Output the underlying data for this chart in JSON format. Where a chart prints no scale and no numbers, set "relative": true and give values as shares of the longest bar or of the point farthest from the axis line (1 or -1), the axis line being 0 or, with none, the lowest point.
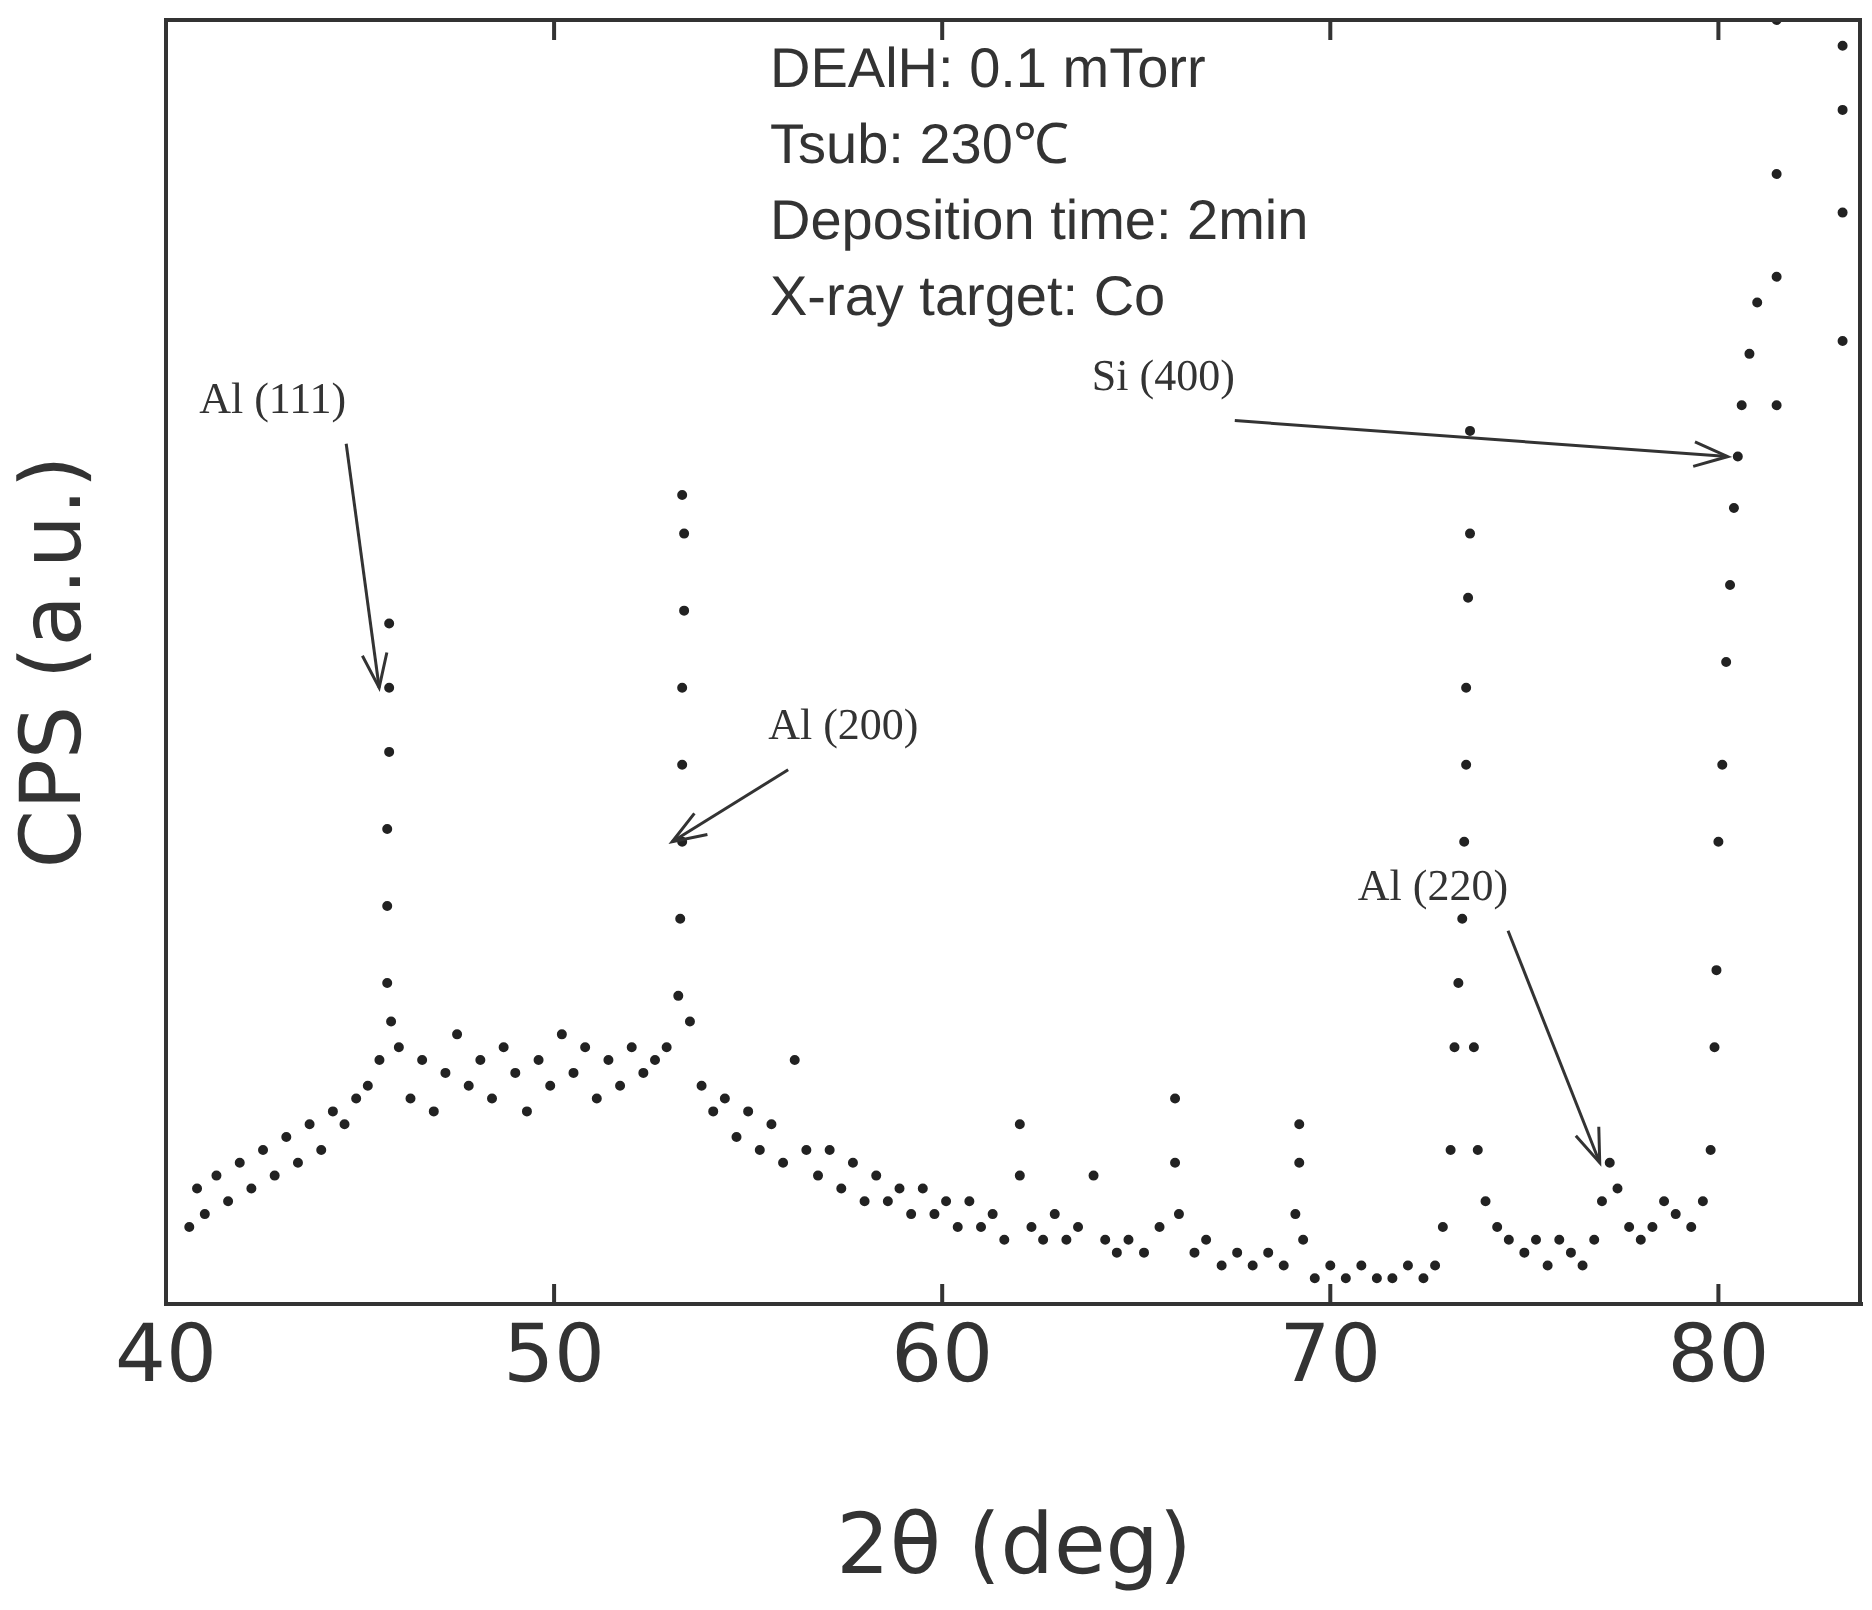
{
  "chart_data": {
    "type": "scatter",
    "relative": true,
    "xlabel": "2θ (deg)",
    "ylabel": "CPS (a.u.)",
    "xlim": [
      40,
      83.7
    ],
    "xticks": [
      40,
      50,
      60,
      70,
      80
    ],
    "tick_labels": "x",
    "grid": false,
    "legend": false,
    "marker": "circle",
    "annotations": [
      "DEAlH: 0.1 mTorr",
      "Tsub: 230℃",
      "Deposition time: 2min",
      "X-ray target: Co",
      {
        "text": "Al (111)",
        "x": 45.75,
        "y": 0.48
      },
      {
        "text": "Al (200)",
        "x": 53.3,
        "y": 0.36
      },
      {
        "text": "Al (220)",
        "x": 77.2,
        "y": 0.11
      },
      {
        "text": "Si (400)",
        "x": 80.5,
        "y": 0.66
      }
    ],
    "series": [
      {
        "color": "#222222",
        "x": [
          40.6,
          40.8,
          41.0,
          41.3,
          41.6,
          41.9,
          42.2,
          42.5,
          42.8,
          43.1,
          43.4,
          43.7,
          44.0,
          44.3,
          44.6,
          44.9,
          45.2,
          45.5,
          45.7,
          45.7,
          45.7,
          45.75,
          45.75,
          45.75,
          45.8,
          46.0,
          46.3,
          46.6,
          46.9,
          47.2,
          47.5,
          47.8,
          48.1,
          48.4,
          48.7,
          49.0,
          49.3,
          49.6,
          49.9,
          50.2,
          50.5,
          50.8,
          51.1,
          51.4,
          51.7,
          52.0,
          52.3,
          52.6,
          52.9,
          53.2,
          53.25,
          53.3,
          53.3,
          53.3,
          53.35,
          53.35,
          53.3,
          53.5,
          53.8,
          54.1,
          54.4,
          54.7,
          55.0,
          55.3,
          55.6,
          55.9,
          56.2,
          56.5,
          56.8,
          57.1,
          57.4,
          57.7,
          58.0,
          58.3,
          58.6,
          58.9,
          59.2,
          59.5,
          59.8,
          60.1,
          60.4,
          60.7,
          61.0,
          61.3,
          61.6,
          62.0,
          62.0,
          62.3,
          62.6,
          62.9,
          63.2,
          63.5,
          63.9,
          64.2,
          64.5,
          64.8,
          65.2,
          65.6,
          66.0,
          66.0,
          66.1,
          66.5,
          66.8,
          67.2,
          67.6,
          68.0,
          68.4,
          68.8,
          69.1,
          69.2,
          69.2,
          69.3,
          69.6,
          70.0,
          70.4,
          70.8,
          71.2,
          71.6,
          72.0,
          72.4,
          72.7,
          72.9,
          73.1,
          73.2,
          73.3,
          73.4,
          73.45,
          73.5,
          73.5,
          73.55,
          73.6,
          73.6,
          73.7,
          73.8,
          74.0,
          74.3,
          74.6,
          75.0,
          75.3,
          75.6,
          75.9,
          76.2,
          76.5,
          76.8,
          77.0,
          77.2,
          77.4,
          77.7,
          78.0,
          78.3,
          78.6,
          78.9,
          79.3,
          79.6,
          79.8,
          79.9,
          79.95,
          80.0,
          80.1,
          80.2,
          80.3,
          80.4,
          80.5,
          80.6,
          80.8,
          81.0,
          81.5,
          81.5,
          81.5,
          81.5,
          83.2,
          83.2,
          83.2,
          83.2
        ],
        "values": [
          0.06,
          0.09,
          0.07,
          0.1,
          0.08,
          0.11,
          0.09,
          0.12,
          0.1,
          0.13,
          0.11,
          0.14,
          0.12,
          0.15,
          0.14,
          0.16,
          0.17,
          0.19,
          0.25,
          0.31,
          0.37,
          0.43,
          0.48,
          0.53,
          0.22,
          0.2,
          0.16,
          0.19,
          0.15,
          0.18,
          0.21,
          0.17,
          0.19,
          0.16,
          0.2,
          0.18,
          0.15,
          0.19,
          0.17,
          0.21,
          0.18,
          0.2,
          0.16,
          0.19,
          0.17,
          0.2,
          0.18,
          0.19,
          0.2,
          0.24,
          0.3,
          0.36,
          0.42,
          0.48,
          0.54,
          0.6,
          0.63,
          0.22,
          0.17,
          0.15,
          0.16,
          0.13,
          0.15,
          0.12,
          0.14,
          0.11,
          0.19,
          0.12,
          0.1,
          0.12,
          0.09,
          0.11,
          0.08,
          0.1,
          0.08,
          0.09,
          0.07,
          0.09,
          0.07,
          0.08,
          0.06,
          0.08,
          0.06,
          0.07,
          0.05,
          0.14,
          0.1,
          0.06,
          0.05,
          0.07,
          0.05,
          0.06,
          0.1,
          0.05,
          0.04,
          0.05,
          0.04,
          0.06,
          0.16,
          0.11,
          0.07,
          0.04,
          0.05,
          0.03,
          0.04,
          0.03,
          0.04,
          0.03,
          0.07,
          0.11,
          0.14,
          0.05,
          0.02,
          0.03,
          0.02,
          0.03,
          0.02,
          0.02,
          0.03,
          0.02,
          0.03,
          0.06,
          0.12,
          0.2,
          0.25,
          0.3,
          0.36,
          0.42,
          0.48,
          0.55,
          0.6,
          0.68,
          0.2,
          0.12,
          0.08,
          0.06,
          0.05,
          0.04,
          0.05,
          0.03,
          0.05,
          0.04,
          0.03,
          0.05,
          0.08,
          0.11,
          0.09,
          0.06,
          0.05,
          0.06,
          0.08,
          0.07,
          0.06,
          0.08,
          0.12,
          0.2,
          0.26,
          0.36,
          0.42,
          0.5,
          0.56,
          0.62,
          0.66,
          0.7,
          0.74,
          0.78,
          0.7,
          0.8,
          0.88,
          1.0,
          0.75,
          0.85,
          0.93,
          0.98
        ]
      }
    ]
  }
}
